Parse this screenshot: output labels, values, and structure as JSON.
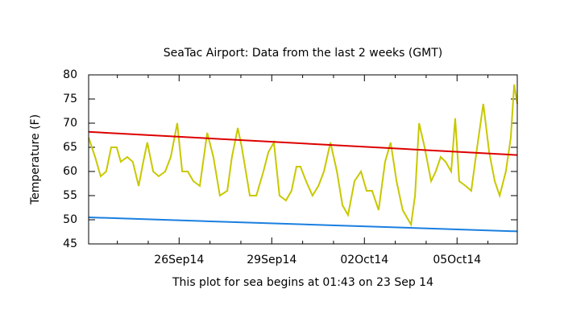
{
  "chart_data": {
    "type": "line",
    "title": "SeaTac Airport:  Data from the last 2 weeks (GMT)",
    "y_label": "Temperature (F)",
    "x_label": "This plot for sea begins at 01:43 on 23 Sep 14",
    "xlim": [
      0.07,
      13.95
    ],
    "ylim": [
      45,
      80
    ],
    "yticks": [
      45,
      50,
      55,
      60,
      65,
      70,
      75,
      80
    ],
    "xticks": [
      {
        "value": 3,
        "label": "26Sep14"
      },
      {
        "value": 6,
        "label": "29Sep14"
      },
      {
        "value": 9,
        "label": "02Oct14"
      },
      {
        "value": 12,
        "label": "05Oct14"
      }
    ],
    "xminorticks": [
      1,
      2,
      4,
      5,
      7,
      8,
      10,
      11,
      13
    ],
    "series": [
      {
        "color": "#c8c800",
        "x": [
          0.07,
          0.28,
          0.46,
          0.64,
          0.8,
          0.98,
          1.11,
          1.32,
          1.5,
          1.69,
          1.84,
          1.97,
          2.16,
          2.34,
          2.55,
          2.73,
          2.94,
          3.1,
          3.28,
          3.46,
          3.67,
          3.91,
          4.11,
          4.32,
          4.56,
          4.71,
          4.9,
          5.03,
          5.29,
          5.5,
          5.73,
          5.89,
          6.07,
          6.25,
          6.46,
          6.64,
          6.8,
          6.93,
          7.11,
          7.32,
          7.51,
          7.69,
          7.9,
          8.11,
          8.29,
          8.47,
          8.68,
          8.89,
          9.07,
          9.25,
          9.46,
          9.67,
          9.85,
          10.04,
          10.24,
          10.51,
          10.64,
          10.77,
          10.95,
          11.16,
          11.31,
          11.47,
          11.63,
          11.81,
          11.94,
          12.07,
          12.28,
          12.46,
          12.65,
          12.85,
          13.04,
          13.22,
          13.38,
          13.58,
          13.74,
          13.85,
          13.95
        ],
        "values": [
          67,
          63,
          59,
          60,
          65,
          65,
          62,
          63,
          62,
          57,
          62,
          66,
          60,
          59,
          60,
          63,
          70,
          60,
          60,
          58,
          57,
          68,
          63,
          55,
          56,
          63,
          69,
          65,
          55,
          55,
          60,
          64,
          66,
          55,
          54,
          56,
          61,
          61,
          58,
          55,
          57,
          60,
          66,
          60,
          53,
          51,
          58,
          60,
          56,
          56,
          52,
          62,
          66,
          58,
          52,
          49,
          55,
          70,
          65,
          58,
          60,
          63,
          62,
          60,
          71,
          58,
          57,
          56,
          65,
          74,
          64,
          58,
          55,
          60,
          67,
          78,
          74
        ]
      },
      {
        "color": "#dd0000",
        "x": [
          0.07,
          13.95
        ],
        "values": [
          68.2,
          63.4
        ]
      },
      {
        "color": "#1a7fe0",
        "x": [
          0.07,
          13.95
        ],
        "values": [
          50.5,
          47.6
        ]
      }
    ]
  }
}
